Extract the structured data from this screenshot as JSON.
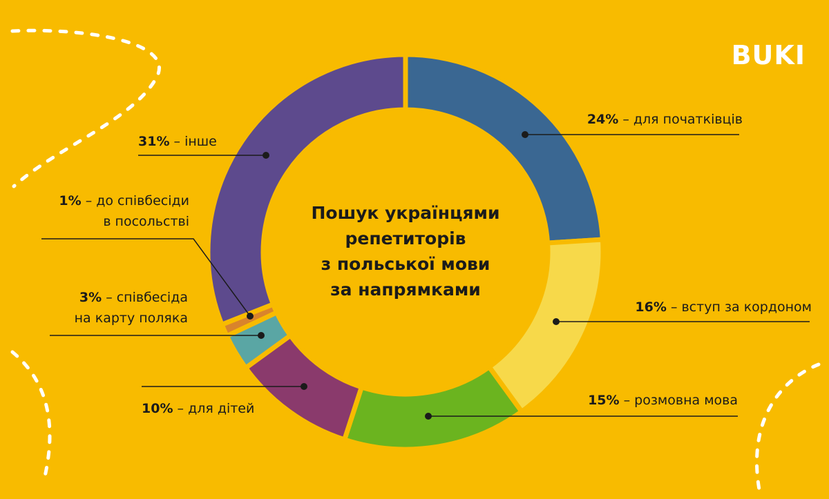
{
  "chart_data": {
    "type": "donut",
    "title": "Пошук українцями\nрепетиторів\nз польської мови\nза напрямками",
    "brand": "BUKI",
    "separator": "–",
    "categories": [
      "для початківців",
      "вступ за кордоном",
      "розмовна мова",
      "для дітей",
      "співбесіда\nна карту поляка",
      "до співбесіди\nв посольстві",
      "інше"
    ],
    "values": [
      24,
      16,
      15,
      10,
      3,
      1,
      31
    ],
    "value_labels": [
      "24%",
      "16%",
      "15%",
      "10%",
      "3%",
      "1%",
      "31%"
    ],
    "colors": [
      "#3a6792",
      "#f7d94a",
      "#6bb41f",
      "#8a3a6c",
      "#5aa6a4",
      "#d9842c",
      "#5d4a8d"
    ]
  }
}
